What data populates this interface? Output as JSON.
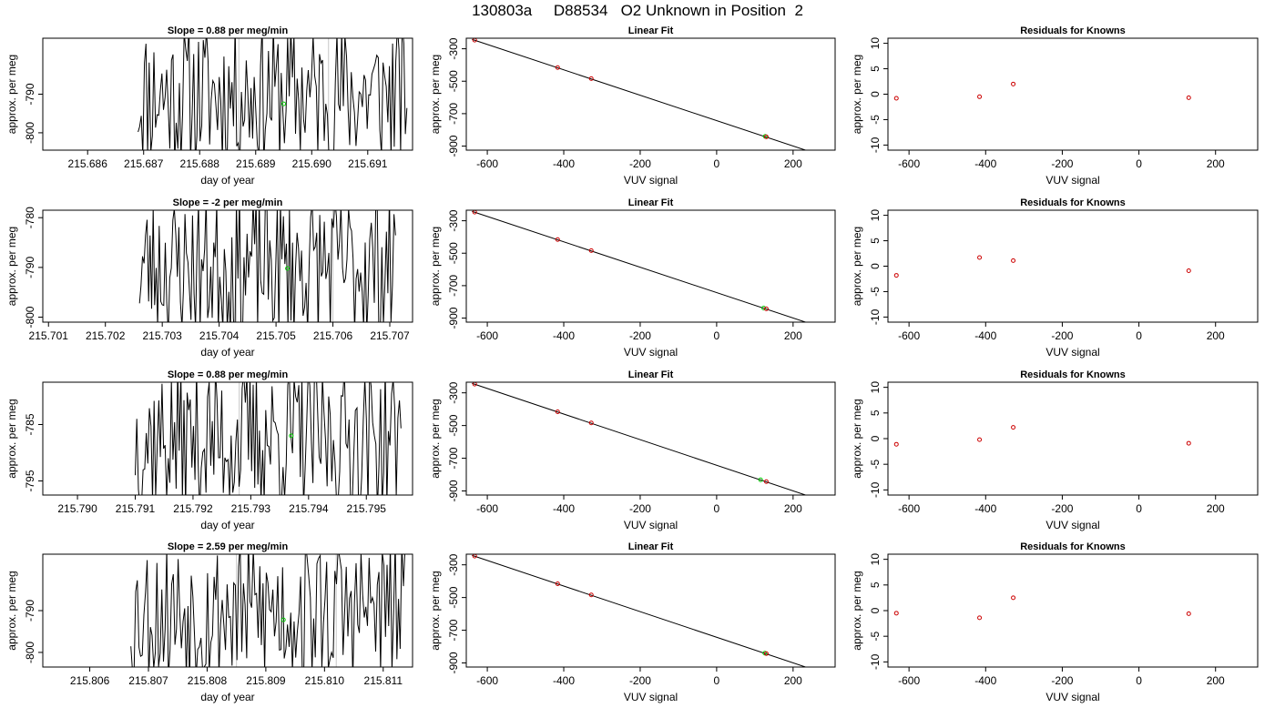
{
  "page": {
    "title": "130803a     D88534   O2 Unknown in Position  2"
  },
  "chart_data": [
    {
      "type": "line",
      "title": "Slope =  0.88  per meg/min",
      "xlabel": "day of year",
      "ylabel": "approx. per meg",
      "xlim": [
        215.6852,
        215.6918
      ],
      "ylim": [
        -804.5,
        -775.5
      ],
      "xticks": [
        215.686,
        215.687,
        215.688,
        215.689,
        215.69,
        215.691
      ],
      "xticklabels": [
        "215.686",
        "215.687",
        "215.688",
        "215.689",
        "215.690",
        "215.691"
      ],
      "yticks": [
        -800,
        -790
      ],
      "yticklabels": [
        "-800",
        "-790"
      ],
      "trace_x_start": 215.6869,
      "trace_x_end": 215.6917,
      "seed": 11,
      "vlines": [
        215.6887,
        215.6903
      ],
      "mean_point": {
        "x": 215.6895,
        "y": -792.5
      }
    },
    {
      "type": "line",
      "title": "Slope =  -2  per meg/min",
      "xlabel": "day of year",
      "ylabel": "approx. per meg",
      "xlim": [
        215.7009,
        215.7074
      ],
      "ylim": [
        -801.0,
        -778.5
      ],
      "xticks": [
        215.701,
        215.702,
        215.703,
        215.704,
        215.705,
        215.706,
        215.707
      ],
      "xticklabels": [
        "215.701",
        "215.702",
        "215.703",
        "215.704",
        "215.705",
        "215.706",
        "215.707"
      ],
      "yticks": [
        -800,
        -790,
        -780
      ],
      "yticklabels": [
        "-800",
        "-790",
        "-780"
      ],
      "trace_x_start": 215.7026,
      "trace_x_end": 215.7071,
      "seed": 23,
      "vlines": [
        215.7043,
        215.706
      ],
      "mean_point": {
        "x": 215.7052,
        "y": -790.2
      }
    },
    {
      "type": "line",
      "title": "Slope =  0.88  per meg/min",
      "xlabel": "day of year",
      "ylabel": "approx. per meg",
      "xlim": [
        215.7894,
        215.7958
      ],
      "ylim": [
        -797.5,
        -777.5
      ],
      "xticks": [
        215.79,
        215.791,
        215.792,
        215.793,
        215.794,
        215.795
      ],
      "xticklabels": [
        "215.790",
        "215.791",
        "215.792",
        "215.793",
        "215.794",
        "215.795"
      ],
      "yticks": [
        -795,
        -785
      ],
      "yticklabels": [
        "-795",
        "-785"
      ],
      "trace_x_start": 215.791,
      "trace_x_end": 215.7956,
      "seed": 37,
      "vlines": [
        215.7928
      ],
      "mean_point": {
        "x": 215.7937,
        "y": -787.0
      }
    },
    {
      "type": "line",
      "title": "Slope =  2.59  per meg/min",
      "xlabel": "day of year",
      "ylabel": "approx. per meg",
      "xlim": [
        215.8052,
        215.8115
      ],
      "ylim": [
        -803.5,
        -776.5
      ],
      "xticks": [
        215.806,
        215.807,
        215.808,
        215.809,
        215.81,
        215.811
      ],
      "xticklabels": [
        "215.806",
        "215.807",
        "215.808",
        "215.809",
        "215.810",
        "215.811"
      ],
      "yticks": [
        -800,
        -790
      ],
      "yticklabels": [
        "-800",
        "-790"
      ],
      "trace_x_start": 215.8067,
      "trace_x_end": 215.8114,
      "seed": 53,
      "vlines": [
        215.8085,
        215.8102
      ],
      "mean_point": {
        "x": 215.8093,
        "y": -792.2
      }
    },
    {
      "type": "scatter",
      "title": "Linear Fit",
      "xlabel": "VUV signal",
      "ylabel": "approx. per meg",
      "xlim": [
        -655,
        310
      ],
      "ylim": [
        -925,
        -235
      ],
      "xticks": [
        -600,
        -400,
        -200,
        0,
        200
      ],
      "xticklabels": [
        "-600",
        "-400",
        "-200",
        "0",
        "200"
      ],
      "yticks": [
        -900,
        -700,
        -500,
        -300
      ],
      "yticklabels": [
        "-900",
        "-700",
        "-500",
        "-300"
      ],
      "knowns": [
        {
          "x": -633,
          "y": -247
        },
        {
          "x": -416,
          "y": -416
        },
        {
          "x": -328,
          "y": -484
        },
        {
          "x": 130,
          "y": -843
        }
      ],
      "unknowns": [
        {
          "x": 127,
          "y": -840
        }
      ],
      "fit_line": {
        "x": [
          -640,
          285
        ],
        "y": [
          -242,
          -966
        ]
      }
    },
    {
      "type": "scatter",
      "title": "Linear Fit",
      "xlabel": "VUV signal",
      "ylabel": "approx. per meg",
      "xlim": [
        -655,
        310
      ],
      "ylim": [
        -925,
        -235
      ],
      "xticks": [
        -600,
        -400,
        -200,
        0,
        200
      ],
      "xticklabels": [
        "-600",
        "-400",
        "-200",
        "0",
        "200"
      ],
      "yticks": [
        -900,
        -700,
        -500,
        -300
      ],
      "yticklabels": [
        "-900",
        "-700",
        "-500",
        "-300"
      ],
      "knowns": [
        {
          "x": -633,
          "y": -247
        },
        {
          "x": -416,
          "y": -416
        },
        {
          "x": -328,
          "y": -484
        },
        {
          "x": 130,
          "y": -843
        }
      ],
      "unknowns": [
        {
          "x": 123,
          "y": -838
        }
      ],
      "fit_line": {
        "x": [
          -640,
          285
        ],
        "y": [
          -242,
          -966
        ]
      }
    },
    {
      "type": "scatter",
      "title": "Linear Fit",
      "xlabel": "VUV signal",
      "ylabel": "approx. per meg",
      "xlim": [
        -655,
        310
      ],
      "ylim": [
        -925,
        -235
      ],
      "xticks": [
        -600,
        -400,
        -200,
        0,
        200
      ],
      "xticklabels": [
        "-600",
        "-400",
        "-200",
        "0",
        "200"
      ],
      "yticks": [
        -900,
        -700,
        -500,
        -300
      ],
      "yticklabels": [
        "-900",
        "-700",
        "-500",
        "-300"
      ],
      "knowns": [
        {
          "x": -633,
          "y": -247
        },
        {
          "x": -416,
          "y": -416
        },
        {
          "x": -328,
          "y": -484
        },
        {
          "x": 130,
          "y": -843
        }
      ],
      "unknowns": [
        {
          "x": 115,
          "y": -832
        }
      ],
      "fit_line": {
        "x": [
          -640,
          285
        ],
        "y": [
          -242,
          -966
        ]
      }
    },
    {
      "type": "scatter",
      "title": "Linear Fit",
      "xlabel": "VUV signal",
      "ylabel": "approx. per meg",
      "xlim": [
        -655,
        310
      ],
      "ylim": [
        -925,
        -235
      ],
      "xticks": [
        -600,
        -400,
        -200,
        0,
        200
      ],
      "xticklabels": [
        "-600",
        "-400",
        "-200",
        "0",
        "200"
      ],
      "yticks": [
        -900,
        -700,
        -500,
        -300
      ],
      "yticklabels": [
        "-900",
        "-700",
        "-500",
        "-300"
      ],
      "knowns": [
        {
          "x": -633,
          "y": -247
        },
        {
          "x": -416,
          "y": -416
        },
        {
          "x": -328,
          "y": -484
        },
        {
          "x": 130,
          "y": -843
        }
      ],
      "unknowns": [
        {
          "x": 126,
          "y": -840
        }
      ],
      "fit_line": {
        "x": [
          -640,
          285
        ],
        "y": [
          -242,
          -966
        ]
      }
    },
    {
      "type": "scatter",
      "title": "Residuals for Knowns",
      "xlabel": "VUV signal",
      "ylabel": "approx. per meg",
      "xlim": [
        -655,
        310
      ],
      "ylim": [
        -11,
        11
      ],
      "xticks": [
        -600,
        -400,
        -200,
        0,
        200
      ],
      "xticklabels": [
        "-600",
        "-400",
        "-200",
        "0",
        "200"
      ],
      "yticks": [
        -10,
        -5,
        0,
        5,
        10
      ],
      "yticklabels": [
        "-10",
        "-5",
        "0",
        "5",
        "10"
      ],
      "knowns": [
        {
          "x": -633,
          "y": -0.8
        },
        {
          "x": -416,
          "y": -0.5
        },
        {
          "x": -328,
          "y": 2.0
        },
        {
          "x": 130,
          "y": -0.7
        }
      ]
    },
    {
      "type": "scatter",
      "title": "Residuals for Knowns",
      "xlabel": "VUV signal",
      "ylabel": "approx. per meg",
      "xlim": [
        -655,
        310
      ],
      "ylim": [
        -11,
        11
      ],
      "xticks": [
        -600,
        -400,
        -200,
        0,
        200
      ],
      "xticklabels": [
        "-600",
        "-400",
        "-200",
        "0",
        "200"
      ],
      "yticks": [
        -10,
        -5,
        0,
        5,
        10
      ],
      "yticklabels": [
        "-10",
        "-5",
        "0",
        "5",
        "10"
      ],
      "knowns": [
        {
          "x": -633,
          "y": -1.8
        },
        {
          "x": -416,
          "y": 1.7
        },
        {
          "x": -328,
          "y": 1.1
        },
        {
          "x": 130,
          "y": -0.9
        }
      ]
    },
    {
      "type": "scatter",
      "title": "Residuals for Knowns",
      "xlabel": "VUV signal",
      "ylabel": "approx. per meg",
      "xlim": [
        -655,
        310
      ],
      "ylim": [
        -11,
        11
      ],
      "xticks": [
        -600,
        -400,
        -200,
        0,
        200
      ],
      "xticklabels": [
        "-600",
        "-400",
        "-200",
        "0",
        "200"
      ],
      "yticks": [
        -10,
        -5,
        0,
        5,
        10
      ],
      "yticklabels": [
        "-10",
        "-5",
        "0",
        "5",
        "10"
      ],
      "knowns": [
        {
          "x": -633,
          "y": -1.1
        },
        {
          "x": -416,
          "y": -0.2
        },
        {
          "x": -328,
          "y": 2.2
        },
        {
          "x": 130,
          "y": -0.9
        }
      ]
    },
    {
      "type": "scatter",
      "title": "Residuals for Knowns",
      "xlabel": "VUV signal",
      "ylabel": "approx. per meg",
      "xlim": [
        -655,
        310
      ],
      "ylim": [
        -11,
        11
      ],
      "xticks": [
        -600,
        -400,
        -200,
        0,
        200
      ],
      "xticklabels": [
        "-600",
        "-400",
        "-200",
        "0",
        "200"
      ],
      "yticks": [
        -10,
        -5,
        0,
        5,
        10
      ],
      "yticklabels": [
        "-10",
        "-5",
        "0",
        "5",
        "10"
      ],
      "knowns": [
        {
          "x": -633,
          "y": -0.5
        },
        {
          "x": -416,
          "y": -1.4
        },
        {
          "x": -328,
          "y": 2.5
        },
        {
          "x": 130,
          "y": -0.6
        }
      ]
    }
  ],
  "colors": {
    "trace": "#000000",
    "known": "#cc0000",
    "unknown": "#00cc00",
    "vline": "#c8c8c8",
    "axis": "#000000"
  }
}
